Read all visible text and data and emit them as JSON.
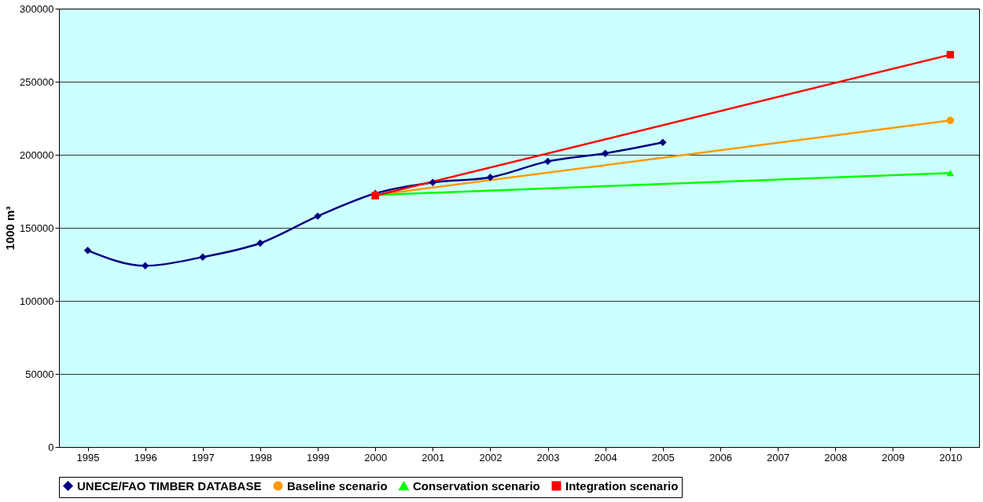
{
  "chart_data": {
    "type": "line",
    "ylabel": "1000 m³",
    "categories": [
      "1995",
      "1996",
      "1997",
      "1998",
      "1999",
      "2000",
      "2001",
      "2002",
      "2003",
      "2004",
      "2005",
      "2006",
      "2007",
      "2008",
      "2009",
      "2010"
    ],
    "ylim": [
      0,
      300000
    ],
    "yticks": [
      0,
      50000,
      100000,
      150000,
      200000,
      250000,
      300000
    ],
    "grid": "y",
    "legend": "bottom",
    "line_style": "solid",
    "series": [
      {
        "name": "UNECE/FAO TIMBER DATABASE",
        "color": "#000080",
        "marker": "diamond",
        "values": [
          134500,
          124000,
          130000,
          139500,
          158000,
          173500,
          181000,
          184500,
          195500,
          201000,
          208500,
          null,
          null,
          null,
          null,
          null
        ]
      },
      {
        "name": "Baseline scenario",
        "color": "#ff9900",
        "marker": "circle",
        "values": [
          null,
          null,
          null,
          null,
          null,
          172500,
          null,
          null,
          null,
          null,
          null,
          null,
          null,
          null,
          null,
          223500
        ]
      },
      {
        "name": "Conservation scenario",
        "color": "#00ff00",
        "marker": "triangle",
        "values": [
          null,
          null,
          null,
          null,
          null,
          172500,
          null,
          null,
          null,
          null,
          null,
          null,
          null,
          null,
          null,
          187500
        ]
      },
      {
        "name": "Integration scenario",
        "color": "#ff0000",
        "marker": "square",
        "values": [
          null,
          null,
          null,
          null,
          null,
          172000,
          null,
          null,
          null,
          null,
          null,
          null,
          null,
          null,
          null,
          268500
        ]
      }
    ]
  }
}
